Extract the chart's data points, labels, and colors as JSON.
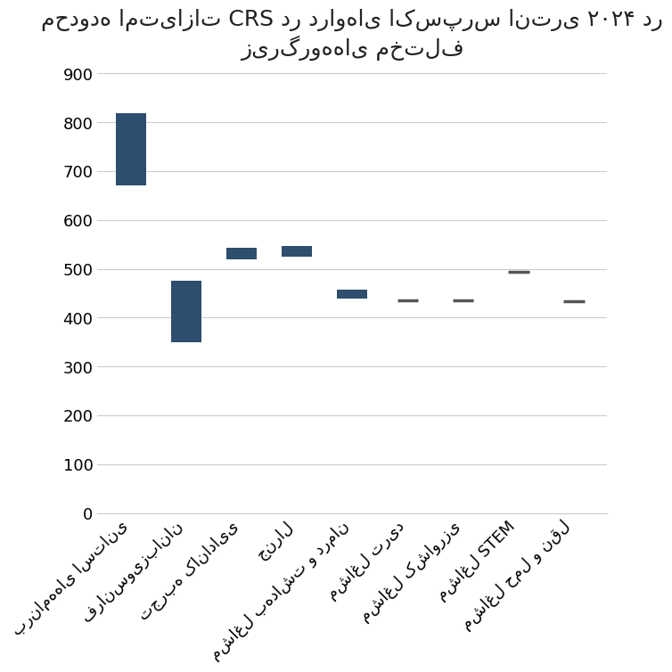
{
  "title_line1": "محدوده امتیازات CRS در دراوهای اکسپرس انتری ۲۰۲۴ در",
  "title_line2": "زیرگروه‌های مختلف",
  "categories": [
    "برنامه‌های استانی",
    "فرانسوی‌زبانان",
    "تجربه کانادایی",
    "جنرال",
    "مشاغل بهداشت و درمان",
    "مشاغل ترید",
    "مشاغل کشاورزی",
    "مشاغل STEM",
    "مشاغل حمل و نقل"
  ],
  "min_values": [
    670,
    349,
    520,
    525,
    440,
    430,
    430,
    490,
    430
  ],
  "max_values": [
    818,
    476,
    543,
    547,
    458,
    440,
    440,
    496,
    437
  ],
  "bar_color": "#2d4e6e",
  "line_color": "#555555",
  "background_color": "#ffffff",
  "ylim": [
    0,
    900
  ],
  "yticks": [
    0,
    100,
    200,
    300,
    400,
    500,
    600,
    700,
    800,
    900
  ],
  "title_fontsize": 18,
  "tick_fontsize": 13,
  "grid_color": "#cccccc"
}
